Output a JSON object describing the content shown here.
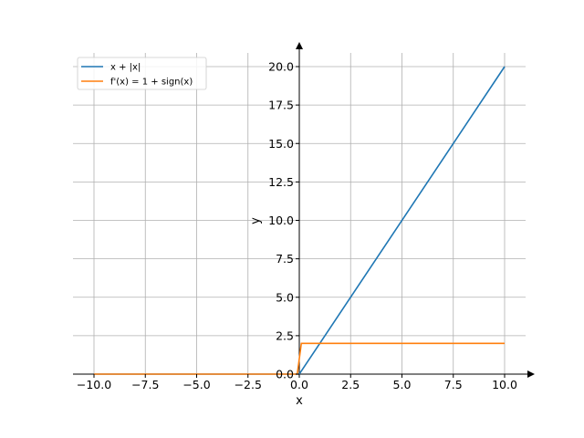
{
  "chart_data": {
    "type": "line",
    "xlabel": "x",
    "ylabel": "y",
    "xlim": [
      -11,
      11
    ],
    "ylim": [
      0,
      20
    ],
    "xticks": [
      -10,
      -7.5,
      -5,
      -2.5,
      0,
      2.5,
      5,
      7.5,
      10
    ],
    "xtick_labels": [
      "−10.0",
      "−7.5",
      "−5.0",
      "−2.5",
      "0.0",
      "2.5",
      "5.0",
      "7.5",
      "10.0"
    ],
    "yticks": [
      0,
      2.5,
      5,
      7.5,
      10,
      12.5,
      15,
      17.5,
      20
    ],
    "ytick_labels": [
      "0.0",
      "2.5",
      "5.0",
      "7.5",
      "10.0",
      "12.5",
      "15.0",
      "17.5",
      "20.0"
    ],
    "grid": true,
    "legend_position": "top-left",
    "series": [
      {
        "name": "x + |x|",
        "color": "#1f77b4",
        "points": [
          [
            -10,
            0
          ],
          [
            0,
            0
          ],
          [
            10,
            20
          ]
        ]
      },
      {
        "name": "f'(x) = 1 + sign(x)",
        "color": "#ff7f0e",
        "points": [
          [
            -10,
            0
          ],
          [
            -0.1,
            0
          ],
          [
            0.1,
            2
          ],
          [
            10,
            2
          ]
        ]
      }
    ]
  }
}
